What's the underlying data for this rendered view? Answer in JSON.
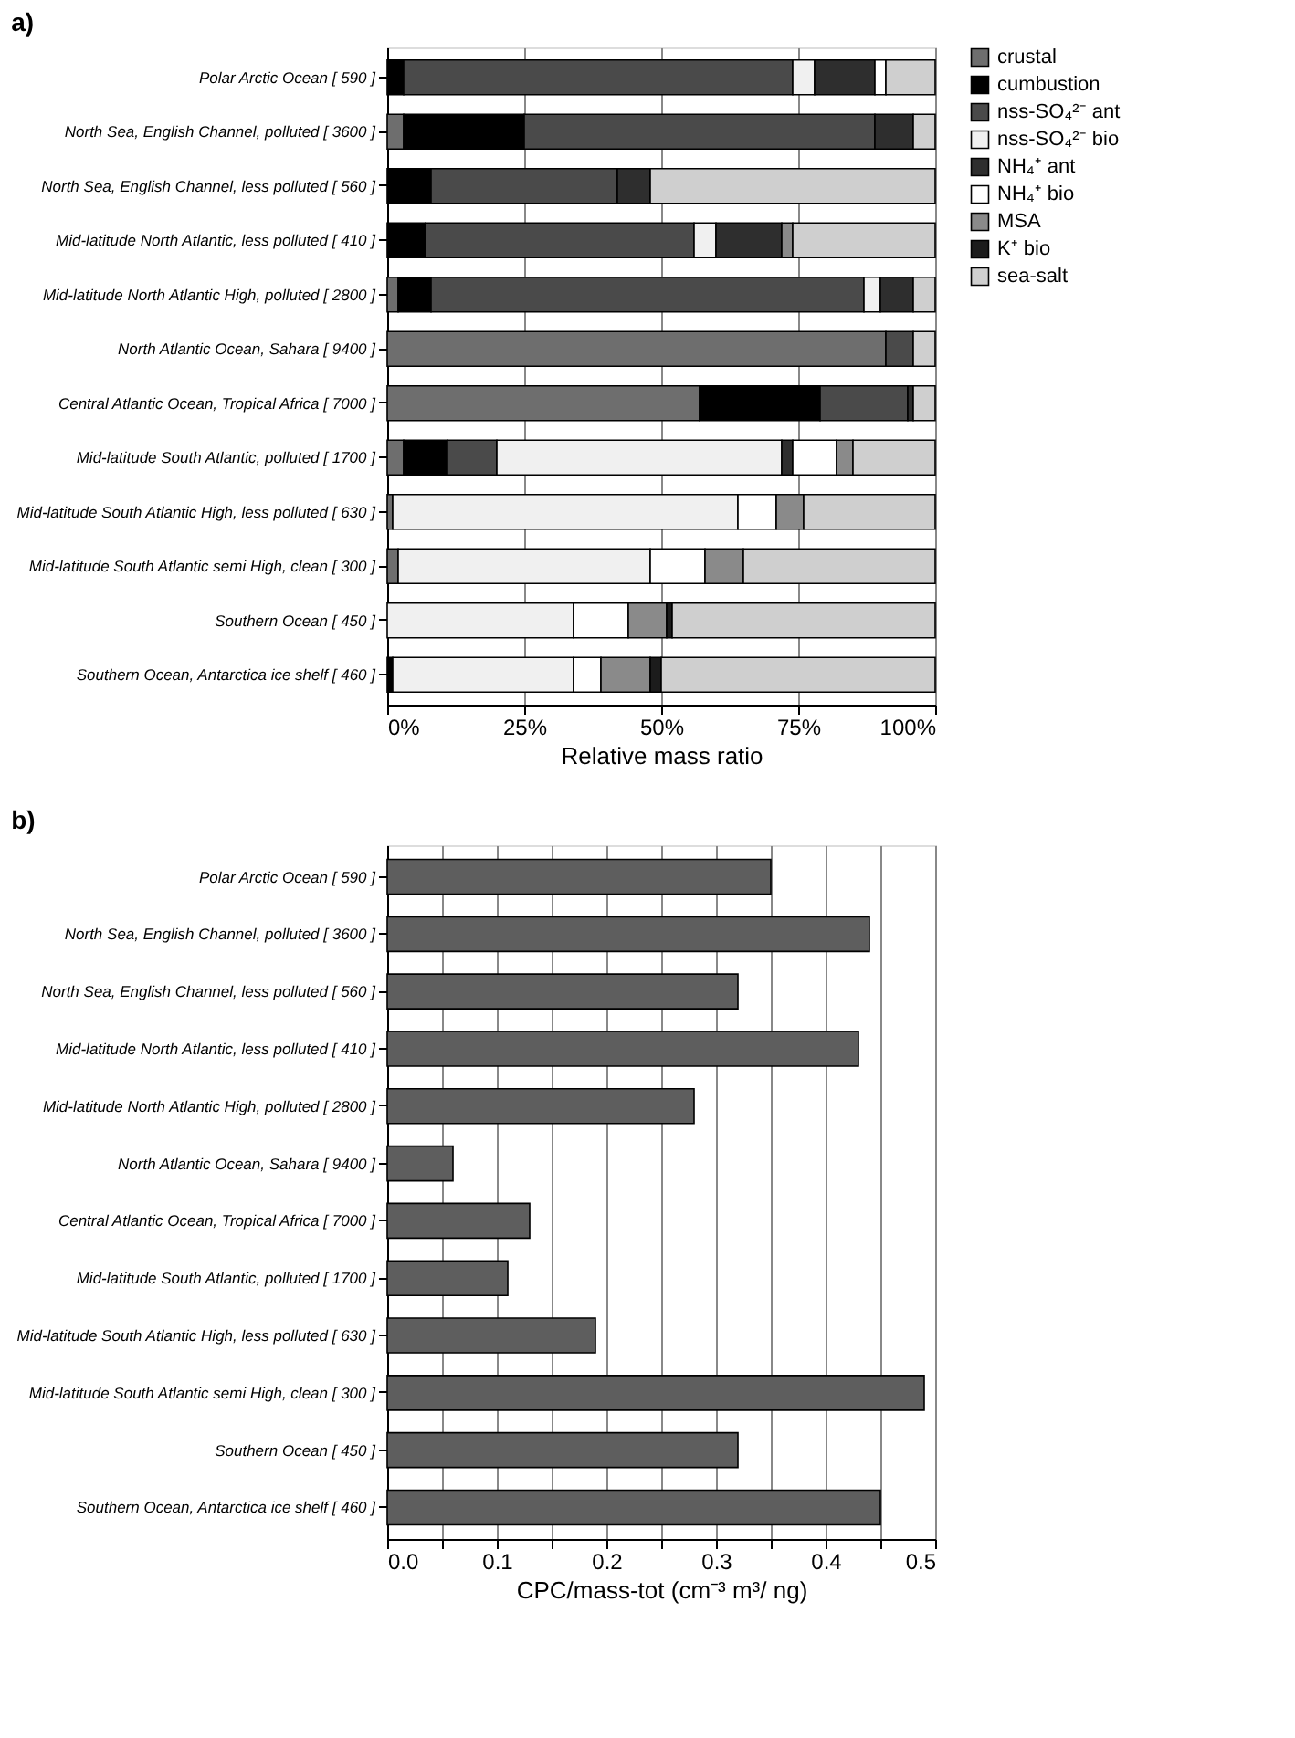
{
  "chart_data": [
    {
      "type": "bar",
      "title": "a)",
      "orientation": "horizontal",
      "stacked": true,
      "categories": [
        "Polar Arctic Ocean  [ 590 ]",
        "North Sea, English Channel, polluted  [ 3600 ]",
        "North Sea, English Channel, less polluted  [ 560 ]",
        "Mid-latitude North Atlantic, less polluted  [ 410 ]",
        "Mid-latitude North Atlantic High, polluted  [ 2800 ]",
        "North Atlantic Ocean, Sahara  [ 9400 ]",
        "Central Atlantic Ocean, Tropical Africa  [ 7000 ]",
        "Mid-latitude South Atlantic, polluted  [ 1700 ]",
        "Mid-latitude South Atlantic High, less polluted  [ 630 ]",
        "Mid-latitude South Atlantic semi  High, clean  [ 300 ]",
        "Southern Ocean  [ 450 ]",
        "Southern Ocean, Antarctica ice shelf  [ 460 ]"
      ],
      "series": [
        {
          "name": "crustal",
          "color": "#6e6e6e",
          "values": [
            null,
            3,
            null,
            null,
            2,
            91,
            57,
            3,
            1,
            2,
            null,
            null
          ]
        },
        {
          "name": "cumbustion",
          "color": "#000000",
          "values": [
            3,
            22,
            8,
            7,
            6,
            null,
            22,
            8,
            null,
            null,
            null,
            1
          ]
        },
        {
          "name": "nss-SO₄²⁻ ant",
          "color": "#4a4a4a",
          "values": [
            71,
            64,
            34,
            49,
            79,
            5,
            16,
            9,
            null,
            null,
            null,
            null
          ]
        },
        {
          "name": "nss-SO₄²⁻ bio",
          "color": "#f0f0f0",
          "values": [
            4,
            null,
            null,
            4,
            3,
            null,
            null,
            52,
            63,
            46,
            34,
            33
          ]
        },
        {
          "name": "NH₄⁺ ant",
          "color": "#2e2e2e",
          "values": [
            11,
            7,
            6,
            12,
            6,
            null,
            1,
            2,
            null,
            null,
            null,
            null
          ]
        },
        {
          "name": "NH₄⁺ bio",
          "color": "#ffffff",
          "values": [
            2,
            null,
            null,
            null,
            null,
            null,
            null,
            8,
            7,
            10,
            10,
            5
          ]
        },
        {
          "name": "MSA",
          "color": "#8a8a8a",
          "values": [
            null,
            null,
            null,
            2,
            null,
            null,
            null,
            3,
            5,
            7,
            7,
            9
          ]
        },
        {
          "name": "K⁺ bio",
          "color": "#1c1c1c",
          "values": [
            null,
            null,
            null,
            null,
            null,
            null,
            null,
            null,
            null,
            null,
            1,
            2
          ]
        },
        {
          "name": "sea-salt",
          "color": "#cfcfcf",
          "values": [
            9,
            4,
            52,
            26,
            4,
            4,
            4,
            15,
            24,
            35,
            48,
            50
          ]
        }
      ],
      "xlim": [
        0,
        100
      ],
      "xticks": [
        {
          "value": 0,
          "label": "0%"
        },
        {
          "value": 25,
          "label": "25%"
        },
        {
          "value": 50,
          "label": "50%"
        },
        {
          "value": 75,
          "label": "75%"
        },
        {
          "value": 100,
          "label": "100%"
        }
      ],
      "xlabel": "Relative mass ratio",
      "grid": "x",
      "legend": "right"
    },
    {
      "type": "bar",
      "title": "b)",
      "orientation": "horizontal",
      "categories": [
        "Polar Arctic Ocean  [ 590 ]",
        "North Sea, English Channel, polluted  [ 3600 ]",
        "North Sea, English Channel, less polluted  [ 560 ]",
        "Mid-latitude North Atlantic, less polluted  [ 410 ]",
        "Mid-latitude North Atlantic High, polluted  [ 2800 ]",
        "North Atlantic Ocean, Sahara  [ 9400 ]",
        "Central Atlantic Ocean, Tropical Africa  [ 7000 ]",
        "Mid-latitude South Atlantic, polluted  [ 1700 ]",
        "Mid-latitude South Atlantic High, less polluted  [ 630 ]",
        "Mid-latitude South Atlantic semi  High, clean  [ 300 ]",
        "Southern Ocean  [ 450 ]",
        "Southern Ocean, Antarctica ice shelf  [ 460 ]"
      ],
      "values": [
        0.35,
        0.44,
        0.32,
        0.43,
        0.28,
        0.06,
        0.13,
        0.11,
        0.19,
        0.49,
        0.32,
        0.45
      ],
      "color": "#5e5e5e",
      "xlim": [
        0,
        0.5
      ],
      "xticks": [
        {
          "value": 0,
          "label": "0.0"
        },
        {
          "value": 0.05,
          "label": null
        },
        {
          "value": 0.1,
          "label": "0.1"
        },
        {
          "value": 0.15,
          "label": null
        },
        {
          "value": 0.2,
          "label": "0.2"
        },
        {
          "value": 0.25,
          "label": null
        },
        {
          "value": 0.3,
          "label": "0.3"
        },
        {
          "value": 0.35,
          "label": null
        },
        {
          "value": 0.4,
          "label": "0.4"
        },
        {
          "value": 0.45,
          "label": null
        },
        {
          "value": 0.5,
          "label": "0.5"
        }
      ],
      "xlabel": "CPC/mass-tot (cm⁻³ m³/ ng)",
      "grid": "x"
    }
  ]
}
